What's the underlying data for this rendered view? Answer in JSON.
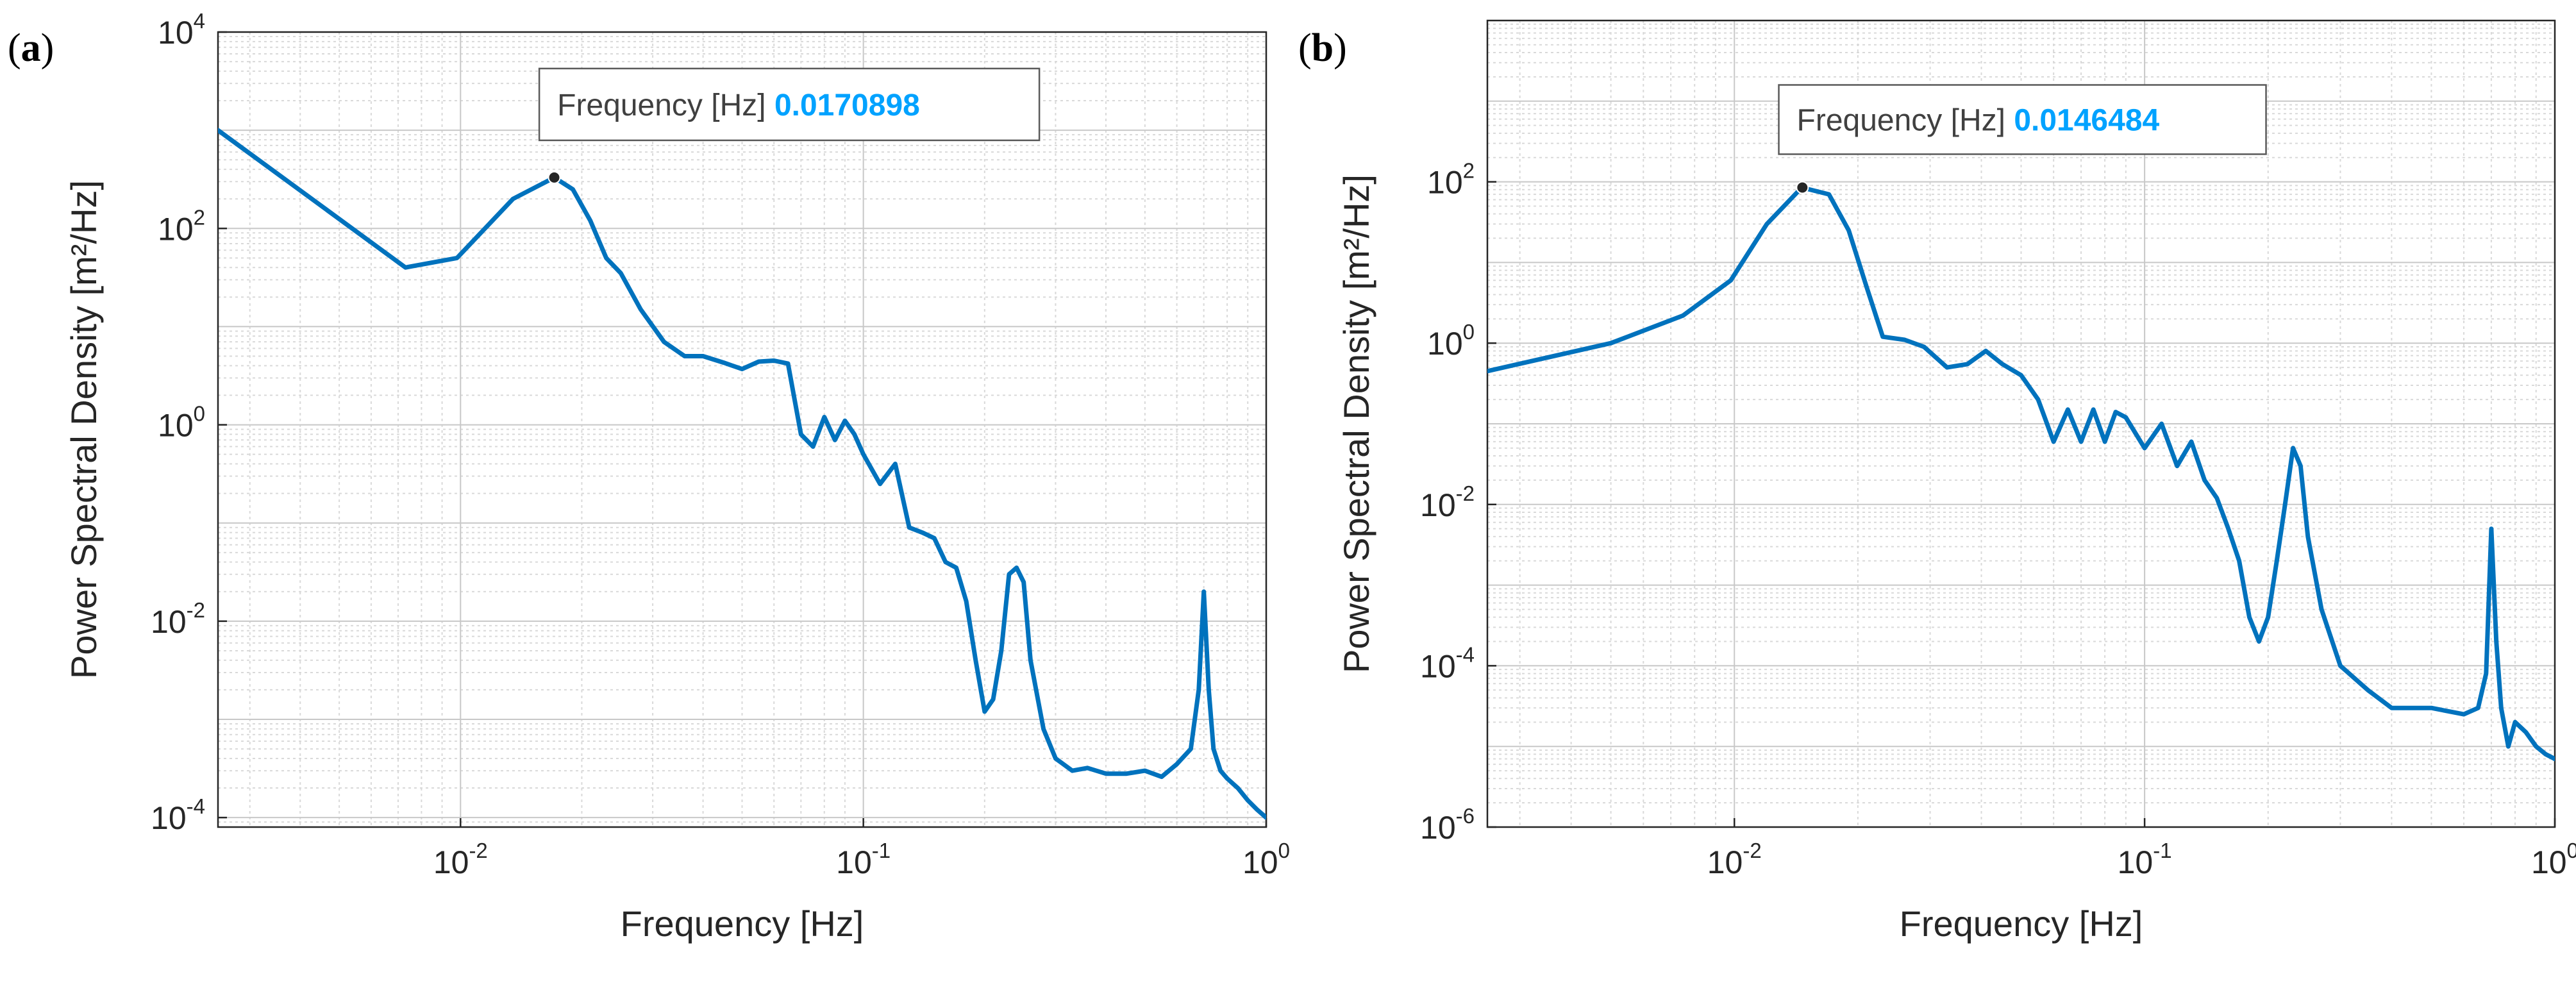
{
  "chart_data": [
    {
      "type": "line",
      "panel_label": "a",
      "x_scale": "log",
      "y_scale": "log",
      "xlabel": "Frequency [Hz]",
      "ylabel": "Power Spectral Density [m²/Hz]",
      "xlim": [
        0.0025,
        1
      ],
      "ylim": [
        8e-05,
        10000
      ],
      "grid": true,
      "line_color": "#0072bd",
      "x_ticks": [
        {
          "value": 0.01,
          "base": "10",
          "exp": "-2"
        },
        {
          "value": 0.1,
          "base": "10",
          "exp": "-1"
        },
        {
          "value": 1,
          "base": "10",
          "exp": "0"
        }
      ],
      "y_ticks": [
        {
          "value": 0.0001,
          "base": "10",
          "exp": "-4"
        },
        {
          "value": 0.01,
          "base": "10",
          "exp": "-2"
        },
        {
          "value": 1,
          "base": "10",
          "exp": "0"
        },
        {
          "value": 100,
          "base": "10",
          "exp": "2"
        },
        {
          "value": 10000,
          "base": "10",
          "exp": "4"
        }
      ],
      "datatip": {
        "label": "Frequency [Hz]",
        "value": "0.0170898",
        "x": 0.0170898,
        "y": 330
      },
      "series": [
        {
          "name": "PSD",
          "x": [
            0.0025,
            0.0073,
            0.0098,
            0.0135,
            0.0171,
            0.019,
            0.021,
            0.023,
            0.025,
            0.028,
            0.032,
            0.036,
            0.04,
            0.045,
            0.05,
            0.055,
            0.06,
            0.065,
            0.07,
            0.075,
            0.08,
            0.085,
            0.09,
            0.095,
            0.1,
            0.11,
            0.12,
            0.13,
            0.14,
            0.15,
            0.16,
            0.17,
            0.18,
            0.19,
            0.2,
            0.21,
            0.22,
            0.23,
            0.24,
            0.25,
            0.26,
            0.28,
            0.3,
            0.33,
            0.36,
            0.4,
            0.45,
            0.5,
            0.55,
            0.6,
            0.65,
            0.68,
            0.7,
            0.72,
            0.74,
            0.77,
            0.8,
            0.85,
            0.9,
            0.95,
            1.0
          ],
          "y": [
            1000,
            40,
            50,
            200,
            330,
            250,
            120,
            50,
            35,
            15,
            7,
            5,
            5,
            4.3,
            3.7,
            4.4,
            4.5,
            4.2,
            0.8,
            0.6,
            1.2,
            0.7,
            1.1,
            0.8,
            0.5,
            0.25,
            0.4,
            0.09,
            0.08,
            0.07,
            0.04,
            0.035,
            0.016,
            0.004,
            0.0012,
            0.0016,
            0.005,
            0.03,
            0.035,
            0.025,
            0.004,
            0.0008,
            0.0004,
            0.0003,
            0.00032,
            0.00028,
            0.00028,
            0.0003,
            0.00026,
            0.00035,
            0.0005,
            0.002,
            0.02,
            0.002,
            0.0005,
            0.0003,
            0.00025,
            0.0002,
            0.00015,
            0.00012,
            0.0001
          ]
        }
      ]
    },
    {
      "type": "line",
      "panel_label": "b",
      "x_scale": "log",
      "y_scale": "log",
      "xlabel": "Frequency [Hz]",
      "ylabel": "Power Spectral Density [m²/Hz]",
      "xlim": [
        0.0025,
        1
      ],
      "ylim": [
        1e-06,
        10000
      ],
      "grid": true,
      "line_color": "#0072bd",
      "x_ticks": [
        {
          "value": 0.01,
          "base": "10",
          "exp": "-2"
        },
        {
          "value": 0.1,
          "base": "10",
          "exp": "-1"
        },
        {
          "value": 1,
          "base": "10",
          "exp": "0"
        }
      ],
      "y_ticks": [
        {
          "value": 1e-06,
          "base": "10",
          "exp": "-6"
        },
        {
          "value": 0.0001,
          "base": "10",
          "exp": "-4"
        },
        {
          "value": 0.01,
          "base": "10",
          "exp": "-2"
        },
        {
          "value": 1,
          "base": "10",
          "exp": "0"
        },
        {
          "value": 100,
          "base": "10",
          "exp": "2"
        }
      ],
      "datatip": {
        "label": "Frequency [Hz]",
        "value": "0.0146484",
        "x": 0.0146484,
        "y": 85
      },
      "series": [
        {
          "name": "PSD",
          "x": [
            0.0025,
            0.005,
            0.0075,
            0.0098,
            0.012,
            0.0146,
            0.017,
            0.019,
            0.021,
            0.023,
            0.026,
            0.029,
            0.033,
            0.037,
            0.041,
            0.045,
            0.05,
            0.055,
            0.06,
            0.065,
            0.07,
            0.075,
            0.08,
            0.085,
            0.09,
            0.1,
            0.11,
            0.12,
            0.13,
            0.14,
            0.15,
            0.16,
            0.17,
            0.18,
            0.19,
            0.2,
            0.21,
            0.22,
            0.23,
            0.24,
            0.25,
            0.27,
            0.3,
            0.35,
            0.4,
            0.5,
            0.6,
            0.65,
            0.68,
            0.7,
            0.72,
            0.74,
            0.77,
            0.8,
            0.85,
            0.9,
            0.95,
            1.0
          ],
          "y": [
            0.45,
            1.0,
            2.2,
            6,
            30,
            85,
            70,
            25,
            5,
            1.2,
            1.1,
            0.9,
            0.5,
            0.55,
            0.8,
            0.55,
            0.4,
            0.2,
            0.06,
            0.15,
            0.06,
            0.15,
            0.06,
            0.14,
            0.12,
            0.05,
            0.1,
            0.03,
            0.06,
            0.02,
            0.012,
            0.005,
            0.002,
            0.0004,
            0.0002,
            0.0004,
            0.002,
            0.01,
            0.05,
            0.03,
            0.004,
            0.0005,
            0.0001,
            5e-05,
            3e-05,
            3e-05,
            2.5e-05,
            3e-05,
            8e-05,
            0.005,
            0.0002,
            3e-05,
            1e-05,
            2e-05,
            1.5e-05,
            1e-05,
            8e-06,
            7e-06
          ]
        }
      ]
    }
  ]
}
